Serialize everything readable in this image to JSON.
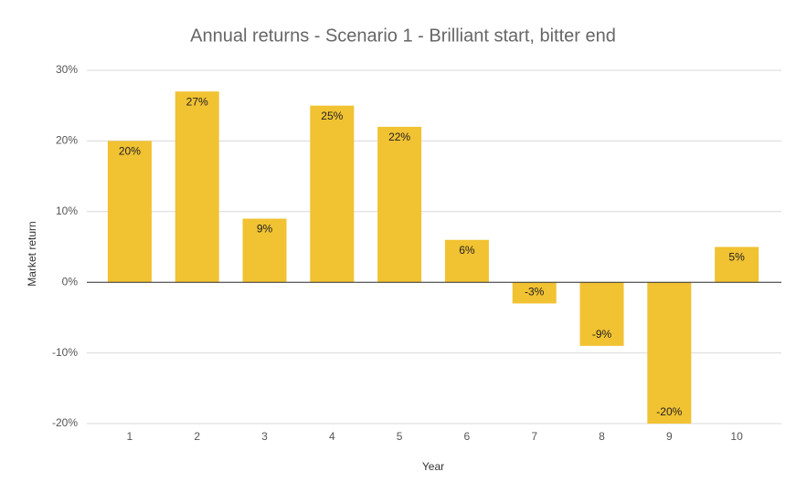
{
  "chart_data": {
    "type": "bar",
    "title": "Annual returns - Scenario 1 - Brilliant start, bitter end",
    "x_label": "Year",
    "y_label": "Market return",
    "categories": [
      "1",
      "2",
      "3",
      "4",
      "5",
      "6",
      "7",
      "8",
      "9",
      "10"
    ],
    "values": [
      20,
      27,
      9,
      25,
      22,
      6,
      -3,
      -9,
      -20,
      5
    ],
    "value_labels": [
      "20%",
      "27%",
      "9%",
      "25%",
      "22%",
      "6%",
      "-3%",
      "-9%",
      "-20%",
      "5%"
    ],
    "color": "#f1c232",
    "ylim": [
      -20,
      30
    ],
    "yticks": [
      {
        "value": -20,
        "label": "-20%"
      },
      {
        "value": -10,
        "label": "-10%"
      },
      {
        "value": 0,
        "label": "0%"
      },
      {
        "value": 10,
        "label": "10%"
      },
      {
        "value": 20,
        "label": "20%"
      },
      {
        "value": 30,
        "label": "30%"
      }
    ],
    "grid": true
  }
}
